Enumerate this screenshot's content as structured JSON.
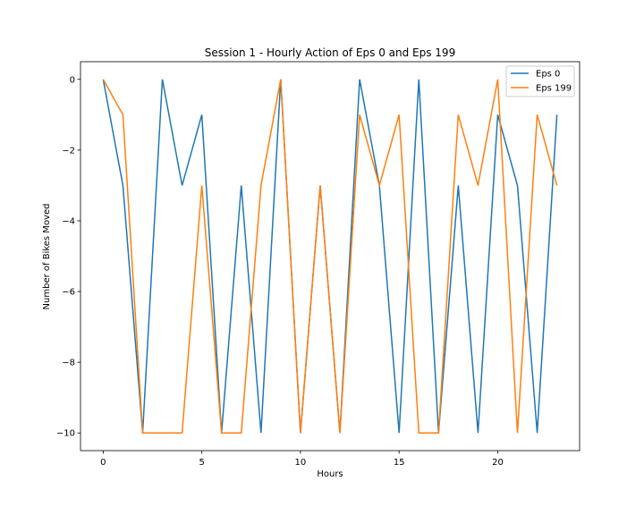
{
  "chart_data": {
    "type": "line",
    "title": "Session 1 - Hourly Action of Eps 0 and Eps 199",
    "xlabel": "Hours",
    "ylabel": "Number of Bikes Moved",
    "xlim": [
      -1.15,
      24.15
    ],
    "ylim": [
      -10.5,
      0.5
    ],
    "xticks": [
      0,
      5,
      10,
      15,
      20
    ],
    "yticks": [
      0,
      -2,
      -4,
      -6,
      -8,
      -10
    ],
    "xtick_labels": [
      "0",
      "5",
      "10",
      "15",
      "20"
    ],
    "ytick_labels": [
      "0",
      "−2",
      "−4",
      "−6",
      "−8",
      "−10"
    ],
    "grid": false,
    "legend_position": "upper right",
    "x": [
      0,
      1,
      2,
      3,
      4,
      5,
      6,
      7,
      8,
      9,
      10,
      11,
      12,
      13,
      14,
      15,
      16,
      17,
      18,
      19,
      20,
      21,
      22,
      23
    ],
    "series": [
      {
        "name": "Eps 0",
        "color": "#1f77b4",
        "values": [
          0,
          -3,
          -10,
          0,
          -3,
          -1,
          -10,
          -3,
          -10,
          0,
          -10,
          -3,
          -10,
          0,
          -3,
          -10,
          0,
          -10,
          -3,
          -10,
          -1,
          -3,
          -10,
          -1
        ]
      },
      {
        "name": "Eps 199",
        "color": "#ff7f0e",
        "values": [
          0,
          -1,
          -10,
          -10,
          -10,
          -3,
          -10,
          -10,
          -3,
          0,
          -10,
          -3,
          -10,
          -1,
          -3,
          -1,
          -10,
          -10,
          -1,
          -3,
          0,
          -10,
          -1,
          -3
        ]
      }
    ]
  }
}
